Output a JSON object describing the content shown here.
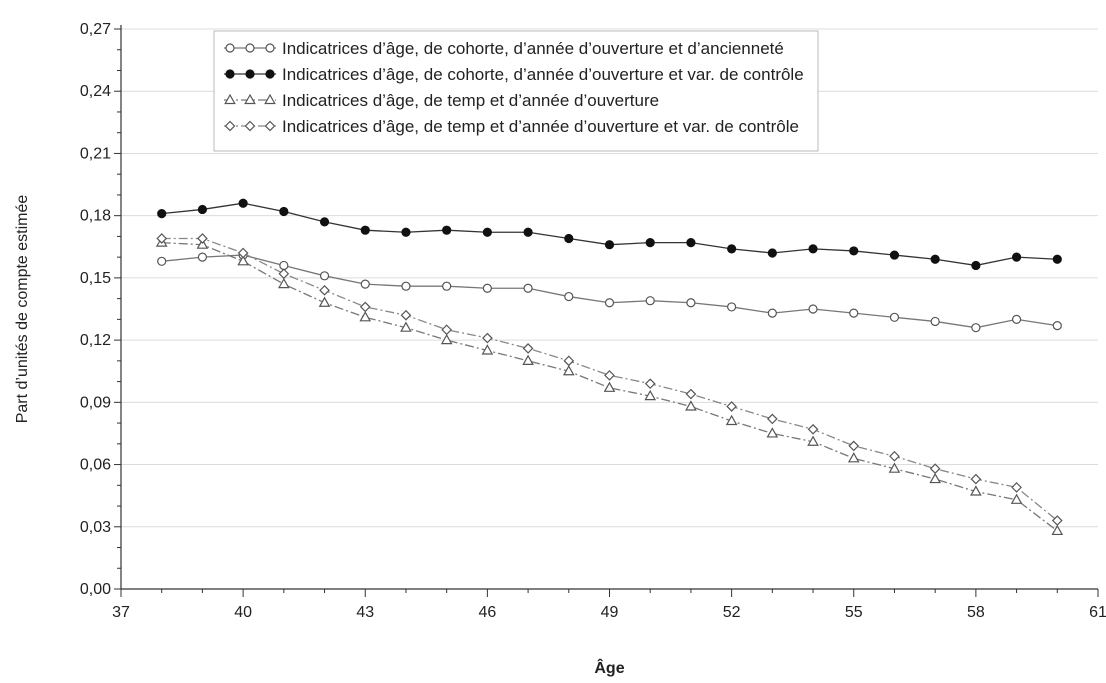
{
  "chart_data": {
    "type": "line",
    "xlabel": "Âge",
    "ylabel": "Part d’unités de compte estimée",
    "xlim": [
      37,
      61
    ],
    "ylim": [
      0,
      0.27
    ],
    "xticks": [
      37,
      40,
      43,
      46,
      49,
      52,
      55,
      58,
      61
    ],
    "yticks": [
      0,
      0.03,
      0.06,
      0.09,
      0.12,
      0.15,
      0.18,
      0.21,
      0.24,
      0.27
    ],
    "xtick_labels": [
      "37",
      "40",
      "43",
      "46",
      "49",
      "52",
      "55",
      "58",
      "61"
    ],
    "ytick_labels": [
      "0,00",
      "0,03",
      "0,06",
      "0,09",
      "0,12",
      "0,15",
      "0,18",
      "0,21",
      "0,24",
      "0,27"
    ],
    "grid": "horizontal",
    "legend_position": "top",
    "x": [
      38,
      39,
      40,
      41,
      42,
      43,
      44,
      45,
      46,
      47,
      48,
      49,
      50,
      51,
      52,
      53,
      54,
      55,
      56,
      57,
      58,
      59,
      60
    ],
    "series": [
      {
        "name": "Indicatrices d’âge, de cohorte, d’année d’ouverture et d’ancienneté",
        "marker": "open-circle",
        "dash": "solid",
        "values": [
          0.158,
          0.16,
          0.161,
          0.156,
          0.151,
          0.147,
          0.146,
          0.146,
          0.145,
          0.145,
          0.141,
          0.138,
          0.139,
          0.138,
          0.136,
          0.133,
          0.135,
          0.133,
          0.131,
          0.129,
          0.126,
          0.13,
          0.127
        ]
      },
      {
        "name": "Indicatrices d’âge, de cohorte, d’année d’ouverture et var. de contrôle",
        "marker": "filled-circle",
        "dash": "solid",
        "values": [
          0.181,
          0.183,
          0.186,
          0.182,
          0.177,
          0.173,
          0.172,
          0.173,
          0.172,
          0.172,
          0.169,
          0.166,
          0.167,
          0.167,
          0.164,
          0.162,
          0.164,
          0.163,
          0.161,
          0.159,
          0.156,
          0.16,
          0.159
        ]
      },
      {
        "name": "Indicatrices d’âge, de temp et d’année d’ouverture",
        "marker": "open-triangle",
        "dash": "dashed",
        "values": [
          0.167,
          0.166,
          0.158,
          0.147,
          0.138,
          0.131,
          0.126,
          0.12,
          0.115,
          0.11,
          0.105,
          0.097,
          0.093,
          0.088,
          0.081,
          0.075,
          0.071,
          0.063,
          0.058,
          0.053,
          0.047,
          0.043,
          0.028
        ]
      },
      {
        "name": "Indicatrices d’âge, de temp et d’année d’ouverture et var. de contrôle",
        "marker": "open-diamond",
        "dash": "dashed",
        "values": [
          0.169,
          0.169,
          0.162,
          0.152,
          0.144,
          0.136,
          0.132,
          0.125,
          0.121,
          0.116,
          0.11,
          0.103,
          0.099,
          0.094,
          0.088,
          0.082,
          0.077,
          0.069,
          0.064,
          0.058,
          0.053,
          0.049,
          0.033
        ]
      }
    ]
  }
}
